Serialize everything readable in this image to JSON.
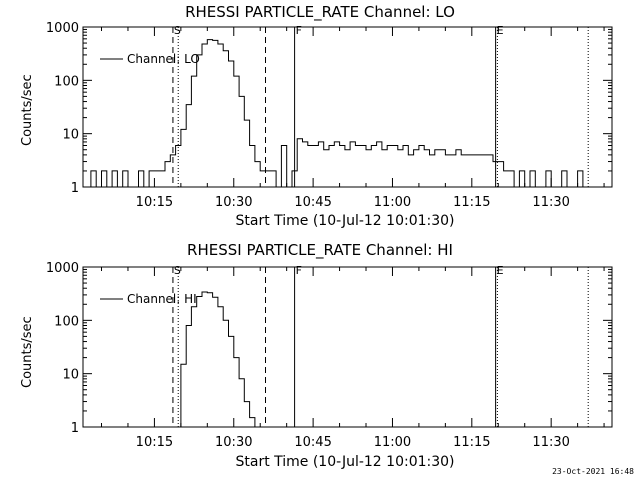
{
  "footer_text": "23-Oct-2021 16:48",
  "chart_data": [
    {
      "type": "line",
      "title": "RHESSI PARTICLE_RATE Channel: LO",
      "xlabel": "Start Time (10-Jul-12 10:01:30)",
      "ylabel": "Counts/sec",
      "xlim": [
        "10:01:30",
        "11:41:30"
      ],
      "ylim": [
        1,
        1000
      ],
      "yscale": "log",
      "x_ticks": [
        "10:15",
        "10:30",
        "10:45",
        "11:00",
        "11:15",
        "11:30"
      ],
      "y_ticks": [
        "1",
        "10",
        "100",
        "1000"
      ],
      "legend": {
        "placement": "top-left",
        "entries": [
          "Channel: LO"
        ]
      },
      "markers": [
        {
          "time": "10:18:30",
          "style": "dashed",
          "label": "S"
        },
        {
          "time": "10:19:30",
          "style": "dotted",
          "label": ""
        },
        {
          "time": "10:36:00",
          "style": "dashed",
          "label": ""
        },
        {
          "time": "10:41:30",
          "style": "solid",
          "label": "F"
        },
        {
          "time": "11:19:30",
          "style": "solid",
          "label": "E"
        },
        {
          "time": "11:19:50",
          "style": "dotted",
          "label": ""
        },
        {
          "time": "11:37:00",
          "style": "dotted",
          "label": ""
        }
      ],
      "series": [
        {
          "name": "Channel: LO",
          "x": [
            "10:02:00",
            "10:03:00",
            "10:04:00",
            "10:05:00",
            "10:06:00",
            "10:07:00",
            "10:08:00",
            "10:09:00",
            "10:10:00",
            "10:11:00",
            "10:12:00",
            "10:13:00",
            "10:14:00",
            "10:15:00",
            "10:16:00",
            "10:17:00",
            "10:18:00",
            "10:19:00",
            "10:20:00",
            "10:21:00",
            "10:22:00",
            "10:23:00",
            "10:24:00",
            "10:25:00",
            "10:26:00",
            "10:27:00",
            "10:28:00",
            "10:29:00",
            "10:30:00",
            "10:31:00",
            "10:32:00",
            "10:33:00",
            "10:34:00",
            "10:35:00",
            "10:36:00",
            "10:37:00",
            "10:38:00",
            "10:39:00",
            "10:40:00",
            "10:41:00",
            "10:42:00",
            "10:43:00",
            "10:44:00",
            "10:45:00",
            "10:46:00",
            "10:47:00",
            "10:48:00",
            "10:49:00",
            "10:50:00",
            "10:51:00",
            "10:52:00",
            "10:53:00",
            "10:54:00",
            "10:55:00",
            "10:56:00",
            "10:57:00",
            "10:58:00",
            "10:59:00",
            "11:00:00",
            "11:01:00",
            "11:02:00",
            "11:03:00",
            "11:04:00",
            "11:05:00",
            "11:06:00",
            "11:07:00",
            "11:08:00",
            "11:09:00",
            "11:10:00",
            "11:11:00",
            "11:12:00",
            "11:13:00",
            "11:14:00",
            "11:15:00",
            "11:16:00",
            "11:17:00",
            "11:18:00",
            "11:19:00",
            "11:20:00",
            "11:21:00",
            "11:22:00",
            "11:23:00",
            "11:24:00",
            "11:25:00",
            "11:26:00",
            "11:27:00",
            "11:28:00",
            "11:29:00",
            "11:30:00",
            "11:31:00",
            "11:32:00",
            "11:33:00",
            "11:34:00",
            "11:35:00",
            "11:36:00",
            "11:37:00"
          ],
          "values": [
            1,
            2,
            1,
            2,
            1,
            2,
            1,
            2,
            1,
            1,
            2,
            1,
            2,
            2,
            2,
            3,
            4,
            6,
            12,
            35,
            120,
            300,
            480,
            580,
            560,
            480,
            360,
            230,
            120,
            50,
            18,
            6,
            3,
            2,
            2,
            2,
            1,
            6,
            1,
            2,
            8,
            7,
            6,
            6,
            7,
            5,
            6,
            7,
            6,
            5,
            7,
            6,
            6,
            5,
            6,
            7,
            5,
            6,
            6,
            5,
            6,
            4,
            5,
            6,
            5,
            4,
            5,
            5,
            4,
            4,
            5,
            4,
            4,
            4,
            4,
            4,
            4,
            3,
            3,
            2,
            2,
            1,
            2,
            1,
            2,
            1,
            1,
            2,
            1,
            1,
            2,
            1,
            1,
            2,
            1,
            1
          ]
        }
      ]
    },
    {
      "type": "line",
      "title": "RHESSI PARTICLE_RATE Channel: HI",
      "xlabel": "Start Time (10-Jul-12 10:01:30)",
      "ylabel": "Counts/sec",
      "xlim": [
        "10:01:30",
        "11:41:30"
      ],
      "ylim": [
        1,
        1000
      ],
      "yscale": "log",
      "x_ticks": [
        "10:15",
        "10:30",
        "10:45",
        "11:00",
        "11:15",
        "11:30"
      ],
      "y_ticks": [
        "1",
        "10",
        "100",
        "1000"
      ],
      "legend": {
        "placement": "top-left",
        "entries": [
          "Channel: HI"
        ]
      },
      "markers": [
        {
          "time": "10:18:30",
          "style": "dashed",
          "label": "S"
        },
        {
          "time": "10:19:30",
          "style": "dotted",
          "label": ""
        },
        {
          "time": "10:36:00",
          "style": "dashed",
          "label": ""
        },
        {
          "time": "10:41:30",
          "style": "solid",
          "label": "F"
        },
        {
          "time": "11:19:30",
          "style": "solid",
          "label": "E"
        },
        {
          "time": "11:19:50",
          "style": "dotted",
          "label": ""
        },
        {
          "time": "11:37:00",
          "style": "dotted",
          "label": ""
        }
      ],
      "series": [
        {
          "name": "Channel: HI",
          "x": [
            "10:19:20",
            "10:20:00",
            "10:21:00",
            "10:22:00",
            "10:23:00",
            "10:24:00",
            "10:25:00",
            "10:26:00",
            "10:27:00",
            "10:28:00",
            "10:29:00",
            "10:30:00",
            "10:31:00",
            "10:32:00",
            "10:33:00",
            "10:34:00"
          ],
          "values": [
            1,
            15,
            80,
            180,
            280,
            340,
            330,
            270,
            180,
            100,
            50,
            20,
            8,
            3,
            1.5,
            1
          ]
        }
      ]
    }
  ]
}
